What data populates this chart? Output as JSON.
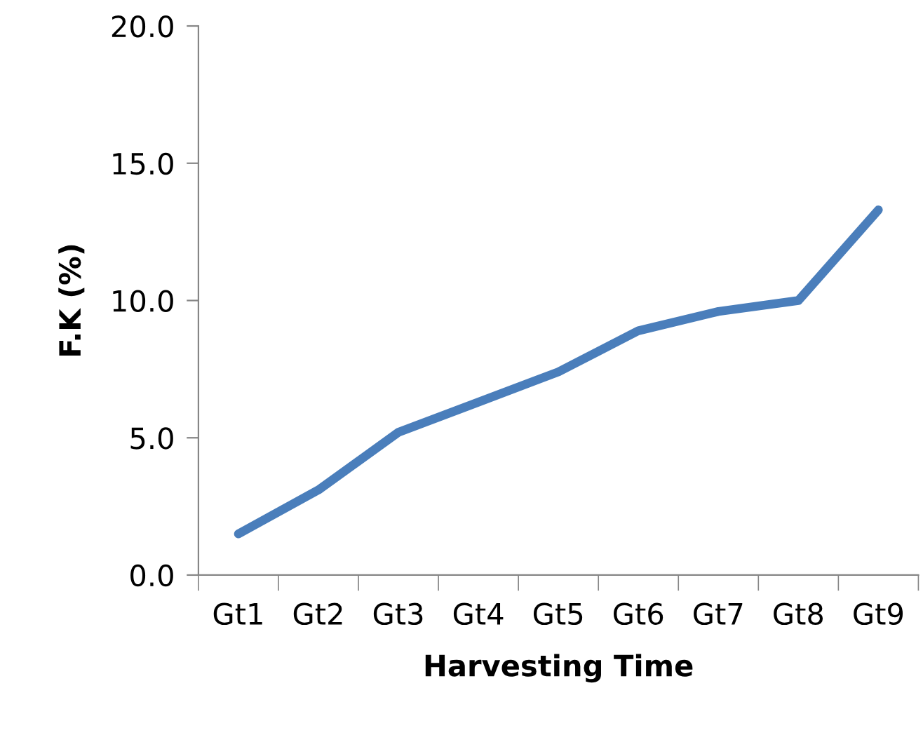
{
  "chart_data": {
    "type": "line",
    "xlabel": "Harvesting Time",
    "ylabel": "F.K (%)",
    "categories": [
      "Gt1",
      "Gt2",
      "Gt3",
      "Gt4",
      "Gt5",
      "Gt6",
      "Gt7",
      "Gt8",
      "Gt9"
    ],
    "series": [
      {
        "color": "#4a7ebb",
        "values": [
          1.5,
          3.1,
          5.2,
          6.3,
          7.4,
          8.9,
          9.6,
          10.0,
          13.3
        ]
      }
    ],
    "ylim": [
      0,
      20
    ],
    "yticks": [
      {
        "value": 0,
        "label": "0.0"
      },
      {
        "value": 5,
        "label": "5.0"
      },
      {
        "value": 10,
        "label": "10.0"
      },
      {
        "value": 15,
        "label": "15.0"
      },
      {
        "value": 20,
        "label": "20.0"
      }
    ],
    "grid": false,
    "legend": false,
    "marker": "none",
    "line_style": "solid"
  }
}
